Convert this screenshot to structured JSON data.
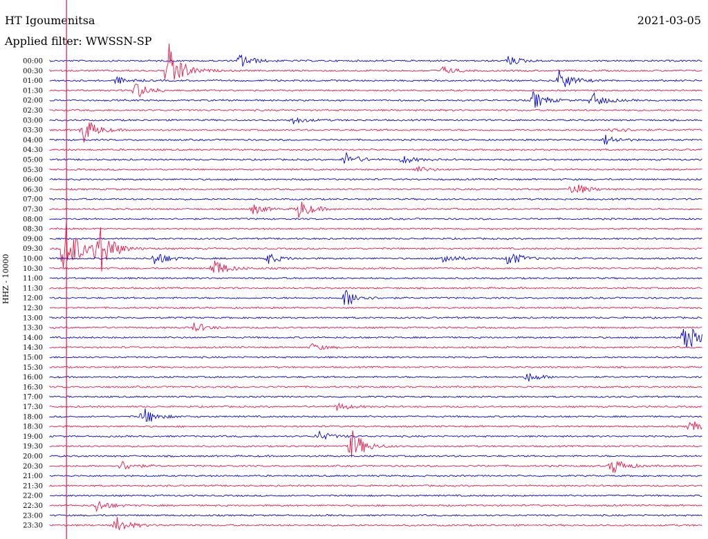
{
  "header": {
    "station": "HT Igoumenitsa",
    "filter": "Applied filter: WWSSN-SP",
    "date": "2021-03-05"
  },
  "axis_label": "HHZ - 10000",
  "colors": {
    "blue": "#0000dd",
    "red": "#ee1144",
    "marker": "#ee1144"
  },
  "chart_data": {
    "type": "line",
    "title": "HT Igoumenitsa",
    "subtitle": "Applied filter: WWSSN-SP",
    "ylabel": "HHZ - 10000",
    "row_labels": [
      "00:00",
      "00:30",
      "01:00",
      "01:30",
      "02:00",
      "02:30",
      "03:00",
      "03:30",
      "04:00",
      "04:30",
      "05:00",
      "05:30",
      "06:00",
      "06:30",
      "07:00",
      "07:30",
      "08:00",
      "08:30",
      "09:00",
      "09:30",
      "10:00",
      "10:30",
      "11:00",
      "11:30",
      "12:00",
      "12:30",
      "13:00",
      "13:30",
      "14:00",
      "14:30",
      "15:00",
      "15:30",
      "16:00",
      "16:30",
      "17:00",
      "17:30",
      "18:00",
      "18:30",
      "19:00",
      "19:30",
      "20:00",
      "20:30",
      "21:00",
      "21:30",
      "22:00",
      "22:30",
      "23:00",
      "23:30"
    ],
    "series_colors": [
      "blue",
      "red"
    ],
    "x_span_minutes": 30,
    "events": [
      {
        "row": 0,
        "x": 0.29,
        "amp": 12
      },
      {
        "row": 0,
        "x": 0.7,
        "amp": 8
      },
      {
        "row": 1,
        "x": 0.18,
        "amp": 45
      },
      {
        "row": 1,
        "x": 0.6,
        "amp": 6
      },
      {
        "row": 2,
        "x": 0.1,
        "amp": 6
      },
      {
        "row": 2,
        "x": 0.78,
        "amp": 16
      },
      {
        "row": 3,
        "x": 0.13,
        "amp": 14
      },
      {
        "row": 4,
        "x": 0.74,
        "amp": 14
      },
      {
        "row": 4,
        "x": 0.83,
        "amp": 12
      },
      {
        "row": 6,
        "x": 0.37,
        "amp": 6
      },
      {
        "row": 7,
        "x": 0.05,
        "amp": 22
      },
      {
        "row": 7,
        "x": 0.86,
        "amp": 6
      },
      {
        "row": 8,
        "x": 0.85,
        "amp": 8
      },
      {
        "row": 10,
        "x": 0.45,
        "amp": 12
      },
      {
        "row": 10,
        "x": 0.54,
        "amp": 6
      },
      {
        "row": 11,
        "x": 0.56,
        "amp": 5
      },
      {
        "row": 13,
        "x": 0.8,
        "amp": 12
      },
      {
        "row": 15,
        "x": 0.38,
        "amp": 16
      },
      {
        "row": 15,
        "x": 0.31,
        "amp": 8
      },
      {
        "row": 19,
        "x": 0.02,
        "amp": 60
      },
      {
        "row": 19,
        "x": 0.07,
        "amp": 55
      },
      {
        "row": 20,
        "x": 0.16,
        "amp": 12
      },
      {
        "row": 20,
        "x": 0.33,
        "amp": 10
      },
      {
        "row": 20,
        "x": 0.6,
        "amp": 10
      },
      {
        "row": 20,
        "x": 0.7,
        "amp": 14
      },
      {
        "row": 21,
        "x": 0.25,
        "amp": 16
      },
      {
        "row": 24,
        "x": 0.45,
        "amp": 16
      },
      {
        "row": 27,
        "x": 0.22,
        "amp": 8
      },
      {
        "row": 28,
        "x": 0.97,
        "amp": 30
      },
      {
        "row": 29,
        "x": 0.4,
        "amp": 6
      },
      {
        "row": 32,
        "x": 0.73,
        "amp": 8
      },
      {
        "row": 35,
        "x": 0.44,
        "amp": 6
      },
      {
        "row": 36,
        "x": 0.14,
        "amp": 16
      },
      {
        "row": 37,
        "x": 0.98,
        "amp": 10
      },
      {
        "row": 38,
        "x": 0.41,
        "amp": 8
      },
      {
        "row": 39,
        "x": 0.46,
        "amp": 28
      },
      {
        "row": 41,
        "x": 0.11,
        "amp": 8
      },
      {
        "row": 41,
        "x": 0.86,
        "amp": 14
      },
      {
        "row": 45,
        "x": 0.07,
        "amp": 10
      },
      {
        "row": 47,
        "x": 0.1,
        "amp": 14
      }
    ],
    "marker_x": 0.015
  }
}
